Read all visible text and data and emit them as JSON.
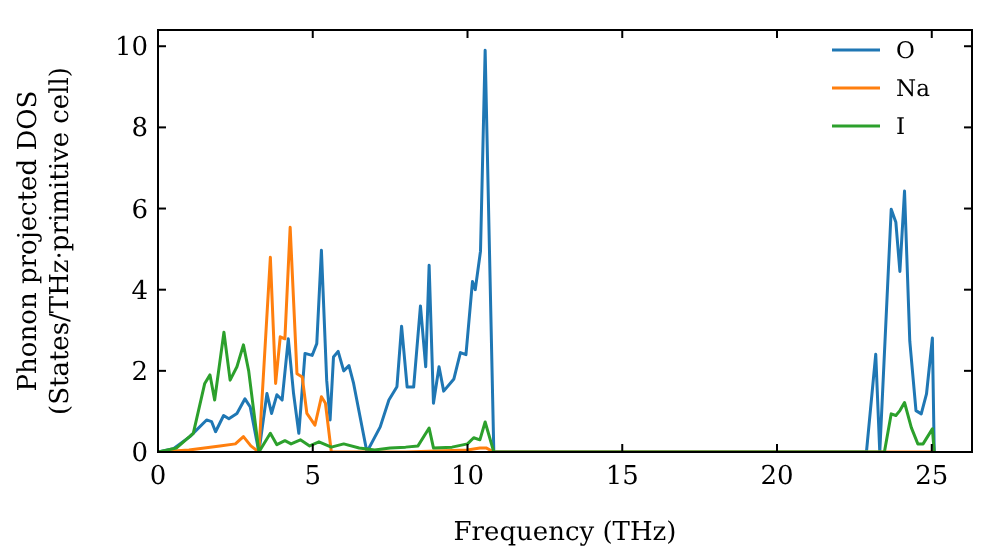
{
  "chart_data": {
    "type": "line",
    "xlabel": "Frequency (THz)",
    "ylabel": "Phonon projected DOS\n(States/THz·primitive cell)",
    "xlim": [
      0,
      26.3
    ],
    "ylim": [
      0,
      10.4
    ],
    "xticks": [
      0,
      5,
      10,
      15,
      20,
      25
    ],
    "yticks": [
      0,
      2,
      4,
      6,
      8,
      10
    ],
    "grid": false,
    "legend": "top right",
    "line_style": "solid",
    "series": [
      {
        "name": "O",
        "color": "#1f77b4",
        "x": [
          0,
          0.5,
          1.03,
          1.57,
          1.73,
          1.86,
          2.12,
          2.29,
          2.55,
          2.81,
          2.98,
          3.26,
          3.52,
          3.67,
          3.84,
          4.01,
          4.21,
          4.38,
          4.55,
          4.75,
          4.98,
          5.13,
          5.28,
          5.45,
          5.56,
          5.67,
          5.82,
          6.0,
          6.17,
          6.32,
          6.75,
          7.18,
          7.46,
          7.72,
          7.87,
          8.05,
          8.26,
          8.48,
          8.65,
          8.76,
          8.9,
          9.08,
          9.23,
          9.56,
          9.77,
          9.95,
          10.16,
          10.25,
          10.42,
          10.57,
          10.85,
          22.89,
          23.19,
          23.32,
          23.69,
          23.84,
          23.97,
          24.12,
          24.29,
          24.49,
          24.66,
          24.83,
          25.02,
          25.08
        ],
        "values": [
          0,
          0.08,
          0.38,
          0.79,
          0.75,
          0.5,
          0.9,
          0.82,
          0.95,
          1.31,
          1.11,
          0,
          1.44,
          0.95,
          1.41,
          1.28,
          2.79,
          1.44,
          0.46,
          2.43,
          2.38,
          2.67,
          4.97,
          1.77,
          0.79,
          2.34,
          2.48,
          2.0,
          2.13,
          1.69,
          0,
          0.62,
          1.28,
          1.61,
          3.1,
          1.6,
          1.6,
          3.6,
          2.1,
          4.6,
          1.2,
          2.1,
          1.5,
          1.8,
          2.45,
          2.4,
          4.2,
          4.0,
          4.95,
          9.9,
          0,
          0,
          2.41,
          0,
          5.98,
          5.66,
          4.45,
          6.43,
          2.73,
          1.02,
          0.94,
          1.43,
          2.81,
          0
        ]
      },
      {
        "name": "Na",
        "color": "#ff7f0e",
        "x": [
          0,
          1.0,
          2.0,
          2.5,
          2.76,
          3.0,
          3.26,
          3.63,
          3.8,
          3.95,
          4.1,
          4.27,
          4.49,
          4.66,
          4.81,
          5.07,
          5.28,
          5.41,
          5.6,
          8.0,
          10.0,
          10.4,
          10.6,
          10.85,
          25.08
        ],
        "values": [
          0,
          0.05,
          0.15,
          0.2,
          0.38,
          0.15,
          0,
          4.8,
          1.69,
          2.84,
          2.79,
          5.54,
          1.93,
          1.85,
          0.95,
          0.66,
          1.36,
          1.2,
          0,
          0,
          0.05,
          0.1,
          0.1,
          0,
          0
        ]
      },
      {
        "name": "I",
        "color": "#2ca02c",
        "x": [
          0,
          0.6,
          1.14,
          1.51,
          1.68,
          1.83,
          2.13,
          2.33,
          2.55,
          2.76,
          2.93,
          3.26,
          3.63,
          3.84,
          4.1,
          4.3,
          4.6,
          4.9,
          5.2,
          5.6,
          6.0,
          6.5,
          7.0,
          7.5,
          8.0,
          8.4,
          8.76,
          8.9,
          9.5,
          10.0,
          10.2,
          10.4,
          10.57,
          10.85,
          23.47,
          23.69,
          23.84,
          23.97,
          24.12,
          24.34,
          24.55,
          24.72,
          25.02,
          25.08
        ],
        "values": [
          0,
          0.1,
          0.46,
          1.69,
          1.9,
          1.28,
          2.95,
          1.77,
          2.1,
          2.64,
          2.0,
          0,
          0.46,
          0.18,
          0.28,
          0.2,
          0.3,
          0.15,
          0.25,
          0.12,
          0.2,
          0.1,
          0.05,
          0.1,
          0.12,
          0.15,
          0.59,
          0.1,
          0.12,
          0.2,
          0.35,
          0.3,
          0.74,
          0,
          0,
          0.94,
          0.9,
          1.02,
          1.22,
          0.6,
          0.2,
          0.2,
          0.57,
          0
        ]
      }
    ]
  }
}
